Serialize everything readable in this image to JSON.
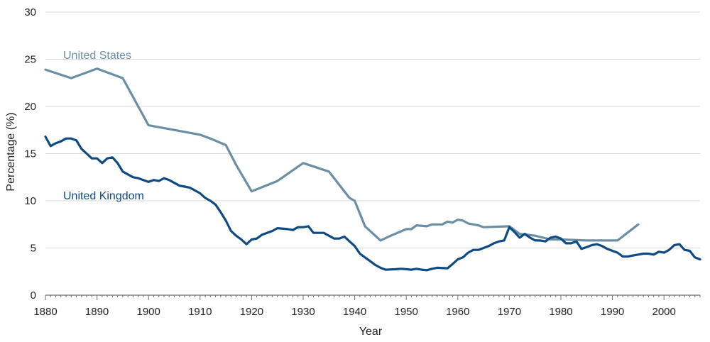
{
  "chart_data": {
    "type": "line",
    "title": "",
    "xlabel": "Year",
    "ylabel": "Percentage (%)",
    "xlim": [
      1880,
      2007
    ],
    "ylim": [
      0,
      30
    ],
    "xticks": [
      1880,
      1890,
      1900,
      1910,
      1920,
      1930,
      1940,
      1950,
      1960,
      1970,
      1980,
      1990,
      2000
    ],
    "yticks": [
      0,
      5,
      10,
      15,
      20,
      25,
      30
    ],
    "grid": "horizontal",
    "legend": "inline labels",
    "series": [
      {
        "name": "United States",
        "color": "#6a8fa5",
        "points": [
          [
            1880,
            23.9
          ],
          [
            1885,
            23.0
          ],
          [
            1890,
            24.0
          ],
          [
            1895,
            23.0
          ],
          [
            1900,
            18.0
          ],
          [
            1905,
            17.5
          ],
          [
            1910,
            17.0
          ],
          [
            1912,
            16.6
          ],
          [
            1915,
            15.9
          ],
          [
            1917,
            13.8
          ],
          [
            1920,
            11.0
          ],
          [
            1925,
            12.1
          ],
          [
            1930,
            14.0
          ],
          [
            1935,
            13.1
          ],
          [
            1939,
            10.3
          ],
          [
            1940,
            10.0
          ],
          [
            1942,
            7.3
          ],
          [
            1945,
            5.8
          ],
          [
            1947,
            6.3
          ],
          [
            1950,
            7.0
          ],
          [
            1951,
            7.0
          ],
          [
            1952,
            7.4
          ],
          [
            1954,
            7.3
          ],
          [
            1955,
            7.5
          ],
          [
            1957,
            7.5
          ],
          [
            1958,
            7.8
          ],
          [
            1959,
            7.7
          ],
          [
            1960,
            8.0
          ],
          [
            1961,
            7.9
          ],
          [
            1962,
            7.6
          ],
          [
            1964,
            7.4
          ],
          [
            1965,
            7.2
          ],
          [
            1970,
            7.3
          ],
          [
            1972,
            6.5
          ],
          [
            1975,
            6.3
          ],
          [
            1978,
            5.9
          ],
          [
            1980,
            5.9
          ],
          [
            1985,
            5.8
          ],
          [
            1991,
            5.8
          ],
          [
            1995,
            7.5
          ]
        ]
      },
      {
        "name": "United Kingdom",
        "color": "#0e4a84",
        "points": [
          [
            1880,
            16.8
          ],
          [
            1881,
            15.8
          ],
          [
            1882,
            16.1
          ],
          [
            1883,
            16.3
          ],
          [
            1884,
            16.6
          ],
          [
            1885,
            16.6
          ],
          [
            1886,
            16.4
          ],
          [
            1887,
            15.5
          ],
          [
            1888,
            15.0
          ],
          [
            1889,
            14.5
          ],
          [
            1890,
            14.5
          ],
          [
            1891,
            14.0
          ],
          [
            1892,
            14.5
          ],
          [
            1893,
            14.6
          ],
          [
            1894,
            14.0
          ],
          [
            1895,
            13.1
          ],
          [
            1896,
            12.8
          ],
          [
            1897,
            12.5
          ],
          [
            1898,
            12.4
          ],
          [
            1899,
            12.2
          ],
          [
            1900,
            12.0
          ],
          [
            1901,
            12.2
          ],
          [
            1902,
            12.1
          ],
          [
            1903,
            12.4
          ],
          [
            1904,
            12.2
          ],
          [
            1905,
            11.9
          ],
          [
            1906,
            11.6
          ],
          [
            1907,
            11.5
          ],
          [
            1908,
            11.4
          ],
          [
            1909,
            11.1
          ],
          [
            1910,
            10.8
          ],
          [
            1911,
            10.3
          ],
          [
            1912,
            10.0
          ],
          [
            1913,
            9.6
          ],
          [
            1914,
            8.8
          ],
          [
            1915,
            7.9
          ],
          [
            1916,
            6.8
          ],
          [
            1917,
            6.3
          ],
          [
            1918,
            5.9
          ],
          [
            1919,
            5.4
          ],
          [
            1920,
            5.9
          ],
          [
            1921,
            6.0
          ],
          [
            1922,
            6.4
          ],
          [
            1923,
            6.6
          ],
          [
            1924,
            6.8
          ],
          [
            1925,
            7.1
          ],
          [
            1927,
            7.0
          ],
          [
            1928,
            6.9
          ],
          [
            1929,
            7.2
          ],
          [
            1930,
            7.2
          ],
          [
            1931,
            7.3
          ],
          [
            1932,
            6.6
          ],
          [
            1934,
            6.6
          ],
          [
            1935,
            6.3
          ],
          [
            1936,
            6.0
          ],
          [
            1937,
            6.0
          ],
          [
            1938,
            6.2
          ],
          [
            1939,
            5.7
          ],
          [
            1940,
            5.2
          ],
          [
            1941,
            4.4
          ],
          [
            1942,
            4.0
          ],
          [
            1943,
            3.6
          ],
          [
            1944,
            3.2
          ],
          [
            1945,
            2.9
          ],
          [
            1946,
            2.7
          ],
          [
            1948,
            2.75
          ],
          [
            1949,
            2.8
          ],
          [
            1950,
            2.75
          ],
          [
            1951,
            2.7
          ],
          [
            1952,
            2.8
          ],
          [
            1953,
            2.7
          ],
          [
            1954,
            2.65
          ],
          [
            1955,
            2.8
          ],
          [
            1956,
            2.9
          ],
          [
            1958,
            2.85
          ],
          [
            1959,
            3.3
          ],
          [
            1960,
            3.8
          ],
          [
            1961,
            4.0
          ],
          [
            1962,
            4.5
          ],
          [
            1963,
            4.8
          ],
          [
            1964,
            4.8
          ],
          [
            1966,
            5.2
          ],
          [
            1967,
            5.5
          ],
          [
            1968,
            5.7
          ],
          [
            1969,
            5.8
          ],
          [
            1970,
            7.2
          ],
          [
            1971,
            6.7
          ],
          [
            1972,
            6.1
          ],
          [
            1973,
            6.5
          ],
          [
            1974,
            6.1
          ],
          [
            1975,
            5.8
          ],
          [
            1976,
            5.8
          ],
          [
            1977,
            5.7
          ],
          [
            1978,
            6.1
          ],
          [
            1979,
            6.2
          ],
          [
            1980,
            6.0
          ],
          [
            1981,
            5.5
          ],
          [
            1982,
            5.5
          ],
          [
            1983,
            5.7
          ],
          [
            1984,
            4.9
          ],
          [
            1985,
            5.1
          ],
          [
            1986,
            5.3
          ],
          [
            1987,
            5.4
          ],
          [
            1988,
            5.2
          ],
          [
            1989,
            4.9
          ],
          [
            1990,
            4.7
          ],
          [
            1991,
            4.5
          ],
          [
            1992,
            4.1
          ],
          [
            1993,
            4.1
          ],
          [
            1994,
            4.2
          ],
          [
            1995,
            4.3
          ],
          [
            1996,
            4.4
          ],
          [
            1997,
            4.4
          ],
          [
            1998,
            4.3
          ],
          [
            1999,
            4.6
          ],
          [
            2000,
            4.5
          ],
          [
            2001,
            4.8
          ],
          [
            2002,
            5.3
          ],
          [
            2003,
            5.4
          ],
          [
            2004,
            4.8
          ],
          [
            2005,
            4.7
          ],
          [
            2006,
            4.0
          ],
          [
            2007,
            3.8
          ]
        ]
      }
    ]
  }
}
